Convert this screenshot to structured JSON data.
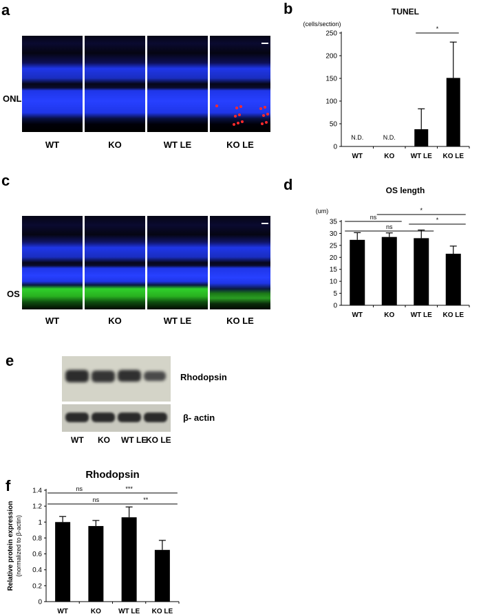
{
  "panels": {
    "a": {
      "letter": "a",
      "side_label": "ONL",
      "lanes": [
        "WT",
        "KO",
        "WT LE",
        "KO LE"
      ]
    },
    "c": {
      "letter": "c",
      "side_label": "OS",
      "lanes": [
        "WT",
        "KO",
        "WT LE",
        "KO LE"
      ]
    },
    "e": {
      "letter": "e",
      "bands": [
        "Rhodopsin",
        "β- actin"
      ],
      "lanes": [
        "WT",
        "KO",
        "WT LE",
        "KO LE"
      ]
    }
  },
  "colors": {
    "nuclear_stain": "#1f36e8",
    "tunel_signal": "#ff2a2a",
    "os_signal": "#2fd02a",
    "bars": "#000000"
  },
  "chart_data": [
    {
      "id": "b",
      "letter": "b",
      "type": "bar",
      "title": "TUNEL",
      "ylabel": "(cells/section)",
      "categories": [
        "WT",
        "KO",
        "WT LE",
        "KO LE"
      ],
      "values": [
        0,
        0,
        38,
        151
      ],
      "errors": [
        0,
        0,
        45,
        79
      ],
      "bar_text": [
        "N.D.",
        "N.D.",
        "",
        ""
      ],
      "ylim": [
        0,
        250
      ],
      "yticks": [
        0,
        50,
        100,
        150,
        200,
        250
      ],
      "tick_decimals": 0,
      "significance": [
        {
          "from": 2,
          "to": 3,
          "label": "*"
        }
      ]
    },
    {
      "id": "d",
      "letter": "d",
      "type": "bar",
      "title": "OS length",
      "ylabel": "(um)",
      "categories": [
        "WT",
        "KO",
        "WT LE",
        "KO LE"
      ],
      "values": [
        27.3,
        28.5,
        28.0,
        21.5
      ],
      "errors": [
        3.0,
        1.7,
        3.4,
        3.2
      ],
      "bar_text": [
        "",
        "",
        "",
        ""
      ],
      "ylim": [
        0,
        35
      ],
      "yticks": [
        0,
        5,
        10,
        15,
        20,
        25,
        30,
        35
      ],
      "tick_decimals": 0,
      "significance": [
        {
          "from": 0,
          "to": 1,
          "label": "ns"
        },
        {
          "from": 1,
          "to": 3,
          "label": "*"
        },
        {
          "from": 0,
          "to": 2,
          "label": "ns"
        },
        {
          "from": 2,
          "to": 3,
          "label": "*"
        }
      ]
    },
    {
      "id": "f",
      "letter": "f",
      "type": "bar",
      "title": "Rhodopsin",
      "ylabel": "Relative protein expression",
      "ylabel2": "(normalized to β-actin)",
      "categories": [
        "WT",
        "KO",
        "WT LE",
        "KO LE"
      ],
      "values": [
        1.0,
        0.95,
        1.06,
        0.65
      ],
      "errors": [
        0.07,
        0.07,
        0.13,
        0.12
      ],
      "bar_text": [
        "",
        "",
        "",
        ""
      ],
      "ylim": [
        0,
        1.4
      ],
      "yticks": [
        0,
        0.2,
        0.4,
        0.6,
        0.8,
        1,
        1.2,
        1.4
      ],
      "tick_decimals": 1,
      "significance": [
        {
          "from": 0,
          "to": 1,
          "label": "ns"
        },
        {
          "from": 1,
          "to": 3,
          "label": "***"
        },
        {
          "from": 0,
          "to": 2,
          "label": "ns"
        },
        {
          "from": 2,
          "to": 3,
          "label": "**"
        }
      ]
    }
  ]
}
